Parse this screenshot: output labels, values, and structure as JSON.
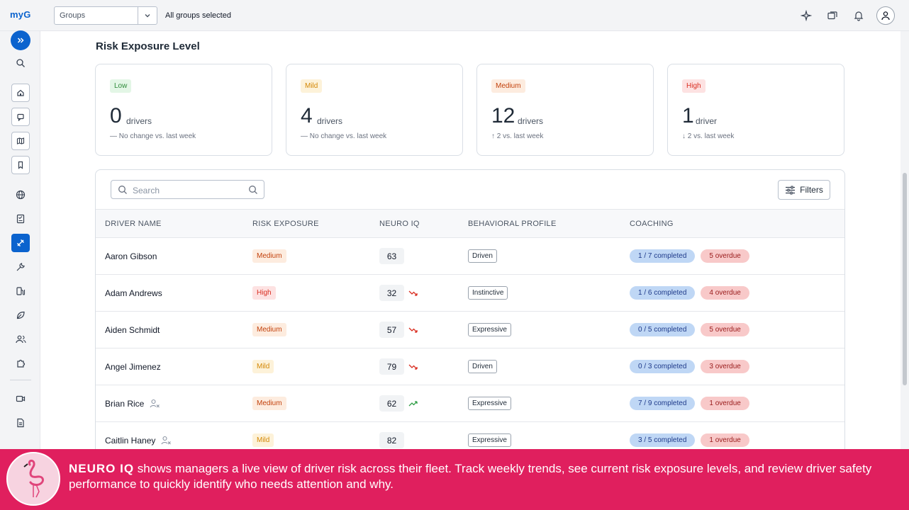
{
  "app": {
    "logo": "myG"
  },
  "topbar": {
    "groups_label": "Groups",
    "groups_value": "All groups selected",
    "icons": [
      "sparkle-icon",
      "windows-icon",
      "bell-icon",
      "user-icon"
    ]
  },
  "sidebar": {
    "items": [
      "expand-icon",
      "search-icon",
      "home-icon",
      "message-icon",
      "map-icon",
      "bookmark-icon",
      "globe-icon",
      "checklist-icon",
      "safety-icon",
      "wrench-icon",
      "fuel-icon",
      "leaf-icon",
      "users-icon",
      "puzzle-icon",
      "video-icon",
      "document-icon"
    ],
    "active": "safety-icon"
  },
  "page": {
    "title": "Risk Exposure Level"
  },
  "cards": [
    {
      "level": "Low",
      "count": "0",
      "unit": "drivers",
      "trend": "— No change vs. last week"
    },
    {
      "level": "Mild",
      "count": "4",
      "unit": "drivers",
      "trend": "— No change vs. last week"
    },
    {
      "level": "Medium",
      "count": "12",
      "unit": "drivers",
      "trend": "↑ 2 vs. last week"
    },
    {
      "level": "High",
      "count": "1",
      "unit": "driver",
      "trend": "↓ 2 vs. last week"
    }
  ],
  "table": {
    "search_placeholder": "Search",
    "filters_label": "Filters",
    "columns": [
      "DRIVER NAME",
      "RISK EXPOSURE",
      "NEURO IQ",
      "BEHAVIORAL PROFILE",
      "COACHING"
    ],
    "rows": [
      {
        "name": "Aaron Gibson",
        "risk": "Medium",
        "iq": "63",
        "trend": "none",
        "profile": "Driven",
        "completed": "1 / 7 completed",
        "overdue": "5 overdue",
        "inactive": false
      },
      {
        "name": "Adam Andrews",
        "risk": "High",
        "iq": "32",
        "trend": "down",
        "profile": "Instinctive",
        "completed": "1 / 6 completed",
        "overdue": "4 overdue",
        "inactive": false
      },
      {
        "name": "Aiden Schmidt",
        "risk": "Medium",
        "iq": "57",
        "trend": "down",
        "profile": "Expressive",
        "completed": "0 / 5 completed",
        "overdue": "5 overdue",
        "inactive": false
      },
      {
        "name": "Angel Jimenez",
        "risk": "Mild",
        "iq": "79",
        "trend": "down",
        "profile": "Driven",
        "completed": "0 / 3 completed",
        "overdue": "3 overdue",
        "inactive": false
      },
      {
        "name": "Brian Rice",
        "risk": "Medium",
        "iq": "62",
        "trend": "up",
        "profile": "Expressive",
        "completed": "7 / 9 completed",
        "overdue": "1 overdue",
        "inactive": true
      },
      {
        "name": "Caitlin Haney",
        "risk": "Mild",
        "iq": "82",
        "trend": "none",
        "profile": "Expressive",
        "completed": "3 / 5 completed",
        "overdue": "1 overdue",
        "inactive": true
      }
    ]
  },
  "colors": {
    "brand_blue": "#0b63ce",
    "banner": "#e01f5e",
    "trend_down": "#d92d20",
    "trend_up": "#2e9d45"
  },
  "banner": {
    "brand": "NEURO IQ",
    "text": " shows managers a live view of driver risk across their fleet. Track weekly trends, see current risk exposure levels, and review driver safety performance to quickly identify who needs attention and why."
  }
}
